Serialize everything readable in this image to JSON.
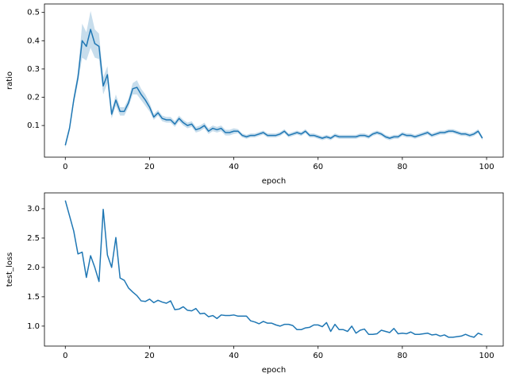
{
  "chart_data": [
    {
      "type": "line",
      "xlabel": "epoch",
      "ylabel": "ratio",
      "x": [
        0,
        1,
        2,
        3,
        4,
        5,
        6,
        7,
        8,
        9,
        10,
        11,
        12,
        13,
        14,
        15,
        16,
        17,
        18,
        19,
        20,
        21,
        22,
        23,
        24,
        25,
        26,
        27,
        28,
        29,
        30,
        31,
        32,
        33,
        34,
        35,
        36,
        37,
        38,
        39,
        40,
        41,
        42,
        43,
        44,
        45,
        46,
        47,
        48,
        49,
        50,
        51,
        52,
        53,
        54,
        55,
        56,
        57,
        58,
        59,
        60,
        61,
        62,
        63,
        64,
        65,
        66,
        67,
        68,
        69,
        70,
        71,
        72,
        73,
        74,
        75,
        76,
        77,
        78,
        79,
        80,
        81,
        82,
        83,
        84,
        85,
        86,
        87,
        88,
        89,
        90,
        91,
        92,
        93,
        94,
        95,
        96,
        97,
        98,
        99
      ],
      "series": [
        {
          "color": "#1f77b4",
          "values": [
            0.03,
            0.09,
            0.19,
            0.27,
            0.4,
            0.38,
            0.44,
            0.39,
            0.38,
            0.24,
            0.28,
            0.14,
            0.19,
            0.15,
            0.15,
            0.18,
            0.23,
            0.235,
            0.21,
            0.19,
            0.165,
            0.13,
            0.145,
            0.125,
            0.12,
            0.12,
            0.105,
            0.125,
            0.11,
            0.1,
            0.105,
            0.085,
            0.09,
            0.1,
            0.08,
            0.09,
            0.085,
            0.09,
            0.075,
            0.075,
            0.08,
            0.08,
            0.065,
            0.06,
            0.065,
            0.065,
            0.07,
            0.075,
            0.065,
            0.065,
            0.065,
            0.07,
            0.08,
            0.065,
            0.07,
            0.075,
            0.07,
            0.08,
            0.065,
            0.065,
            0.06,
            0.055,
            0.06,
            0.055,
            0.065,
            0.06,
            0.06,
            0.06,
            0.06,
            0.06,
            0.065,
            0.065,
            0.06,
            0.07,
            0.075,
            0.07,
            0.06,
            0.055,
            0.06,
            0.06,
            0.07,
            0.065,
            0.065,
            0.06,
            0.065,
            0.07,
            0.075,
            0.065,
            0.07,
            0.075,
            0.075,
            0.08,
            0.08,
            0.075,
            0.07,
            0.07,
            0.065,
            0.07,
            0.08,
            0.055
          ],
          "errors": [
            0.01,
            0.01,
            0.015,
            0.02,
            0.06,
            0.05,
            0.065,
            0.05,
            0.045,
            0.03,
            0.03,
            0.015,
            0.02,
            0.015,
            0.015,
            0.015,
            0.02,
            0.025,
            0.02,
            0.02,
            0.015,
            0.01,
            0.01,
            0.01,
            0.01,
            0.01,
            0.01,
            0.01,
            0.01,
            0.01,
            0.01,
            0.01,
            0.01,
            0.01,
            0.01,
            0.01,
            0.01,
            0.01,
            0.01,
            0.01,
            0.01,
            0.007,
            0.007,
            0.007,
            0.007,
            0.007,
            0.007,
            0.007,
            0.007,
            0.007,
            0.007,
            0.007,
            0.007,
            0.007,
            0.007,
            0.007,
            0.007,
            0.007,
            0.007,
            0.007,
            0.007,
            0.007,
            0.007,
            0.007,
            0.007,
            0.007,
            0.007,
            0.007,
            0.007,
            0.007,
            0.007,
            0.007,
            0.007,
            0.007,
            0.007,
            0.007,
            0.007,
            0.007,
            0.007,
            0.007,
            0.007,
            0.007,
            0.007,
            0.007,
            0.007,
            0.007,
            0.007,
            0.007,
            0.007,
            0.007,
            0.007,
            0.007,
            0.007,
            0.007,
            0.007,
            0.007,
            0.007,
            0.007,
            0.007,
            0.007
          ]
        }
      ],
      "xlim": [
        -4.95,
        103.95
      ],
      "xticks": [
        0,
        20,
        40,
        60,
        80,
        100
      ],
      "ylim": [
        -0.012,
        0.53
      ],
      "yticks": [
        0.1,
        0.2,
        0.3,
        0.4,
        0.5
      ]
    },
    {
      "type": "line",
      "xlabel": "epoch",
      "ylabel": "test_loss",
      "x": [
        0,
        1,
        2,
        3,
        4,
        5,
        6,
        7,
        8,
        9,
        10,
        11,
        12,
        13,
        14,
        15,
        16,
        17,
        18,
        19,
        20,
        21,
        22,
        23,
        24,
        25,
        26,
        27,
        28,
        29,
        30,
        31,
        32,
        33,
        34,
        35,
        36,
        37,
        38,
        39,
        40,
        41,
        42,
        43,
        44,
        45,
        46,
        47,
        48,
        49,
        50,
        51,
        52,
        53,
        54,
        55,
        56,
        57,
        58,
        59,
        60,
        61,
        62,
        63,
        64,
        65,
        66,
        67,
        68,
        69,
        70,
        71,
        72,
        73,
        74,
        75,
        76,
        77,
        78,
        79,
        80,
        81,
        82,
        83,
        84,
        85,
        86,
        87,
        88,
        89,
        90,
        91,
        92,
        93,
        94,
        95,
        96,
        97,
        98,
        99
      ],
      "series": [
        {
          "color": "#1f77b4",
          "values": [
            3.14,
            2.88,
            2.62,
            2.23,
            2.26,
            1.83,
            2.2,
            2.0,
            1.76,
            2.99,
            2.21,
            2.0,
            2.51,
            1.82,
            1.78,
            1.65,
            1.58,
            1.52,
            1.43,
            1.42,
            1.46,
            1.4,
            1.44,
            1.41,
            1.39,
            1.43,
            1.28,
            1.29,
            1.33,
            1.27,
            1.26,
            1.3,
            1.21,
            1.22,
            1.16,
            1.18,
            1.13,
            1.19,
            1.18,
            1.18,
            1.19,
            1.17,
            1.17,
            1.17,
            1.09,
            1.07,
            1.04,
            1.08,
            1.05,
            1.05,
            1.02,
            1.0,
            1.03,
            1.03,
            1.01,
            0.94,
            0.94,
            0.97,
            0.98,
            1.02,
            1.02,
            0.99,
            1.06,
            0.91,
            1.03,
            0.94,
            0.94,
            0.91,
            1.0,
            0.88,
            0.93,
            0.95,
            0.86,
            0.86,
            0.87,
            0.93,
            0.91,
            0.89,
            0.96,
            0.87,
            0.88,
            0.87,
            0.9,
            0.86,
            0.86,
            0.87,
            0.88,
            0.85,
            0.86,
            0.83,
            0.85,
            0.81,
            0.81,
            0.82,
            0.83,
            0.86,
            0.83,
            0.81,
            0.88,
            0.85
          ]
        }
      ],
      "xlim": [
        -4.95,
        103.95
      ],
      "xticks": [
        0,
        20,
        40,
        60,
        80,
        100
      ],
      "ylim": [
        0.66,
        3.27
      ],
      "yticks": [
        {
          "value": 1,
          "label": "1.0"
        },
        1.5,
        {
          "value": 2,
          "label": "2.0"
        },
        2.5,
        {
          "value": 3,
          "label": "3.0"
        }
      ]
    }
  ]
}
